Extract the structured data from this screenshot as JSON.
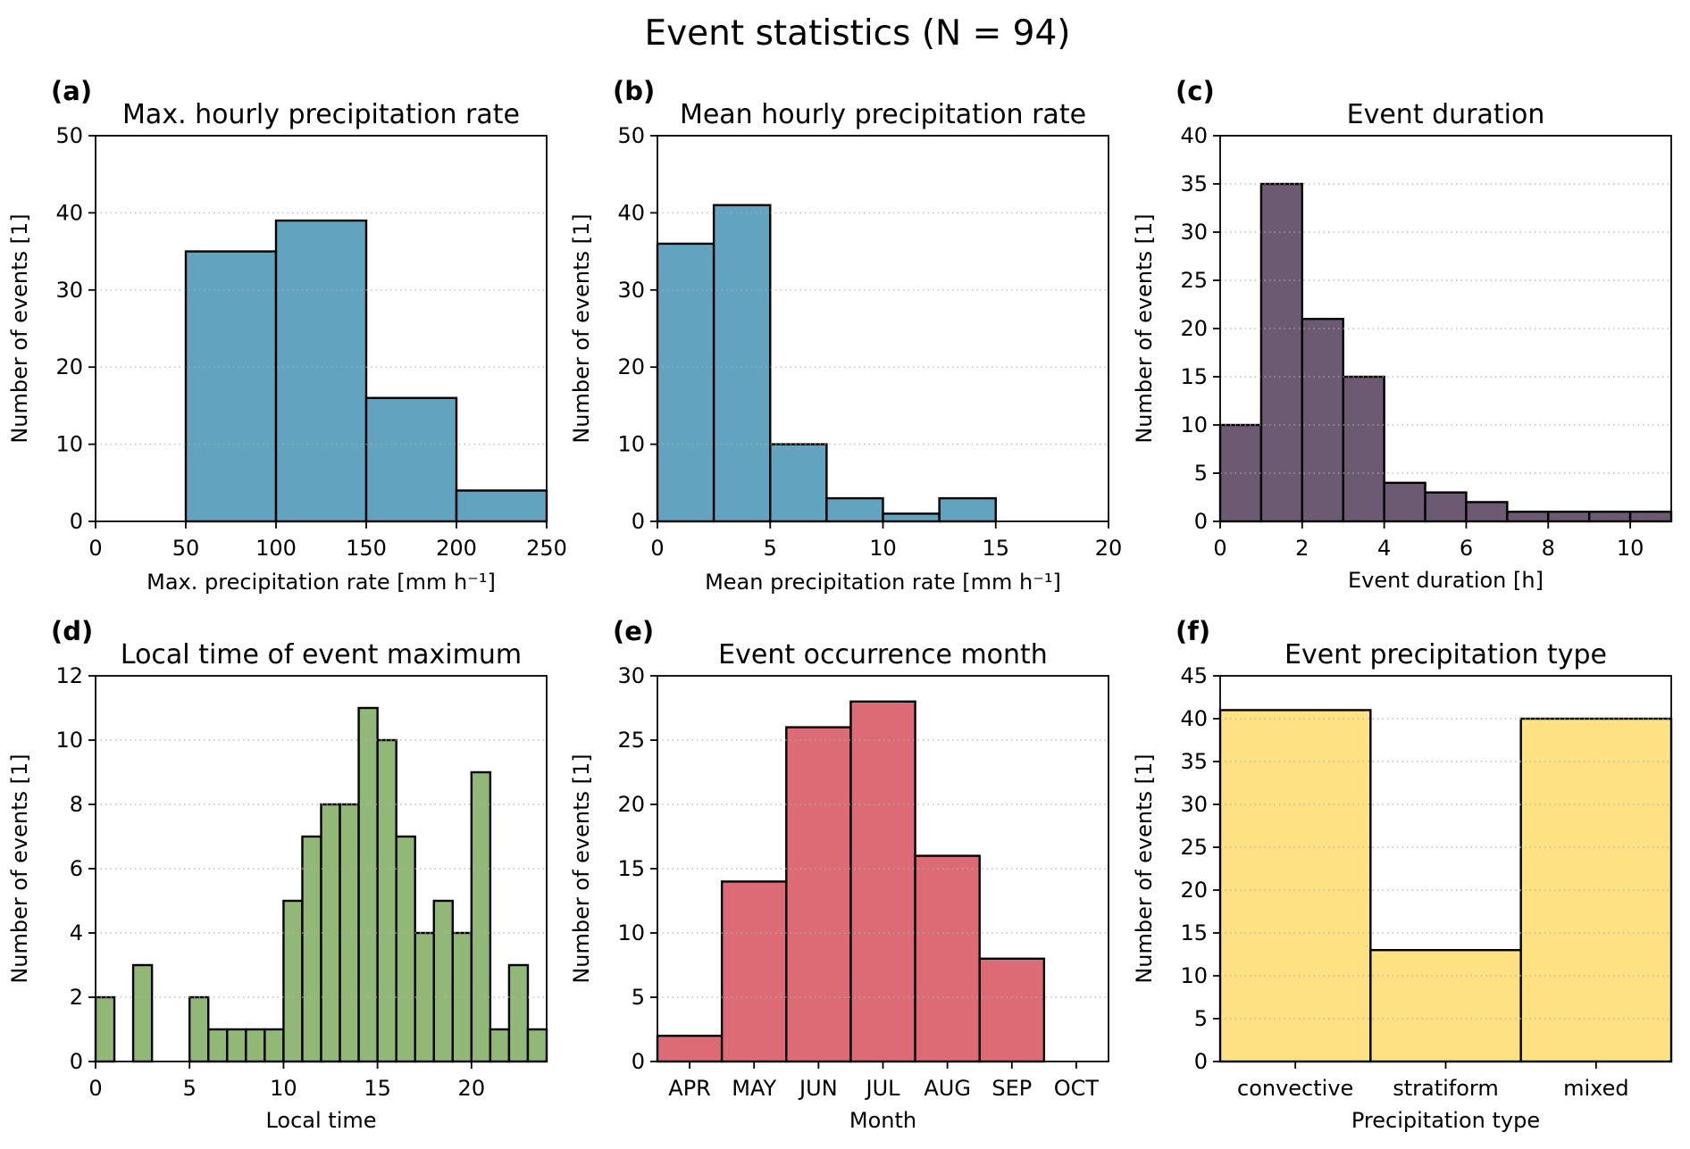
{
  "figure": {
    "suptitle": "Event statistics (N = 94)"
  },
  "chart_data": [
    {
      "id": "a",
      "panel_label": "(a)",
      "type": "bar",
      "title": "Max. hourly precipitation rate",
      "xlabel": "Max. precipitation rate [mm h⁻¹]",
      "ylabel": "Number of events [1]",
      "bin_edges": [
        0,
        50,
        100,
        150,
        200,
        250
      ],
      "values": [
        0,
        35,
        39,
        16,
        4
      ],
      "xlim": [
        0,
        250
      ],
      "ylim": [
        0,
        50
      ],
      "xticks": [
        0,
        50,
        100,
        150,
        200,
        250
      ],
      "yticks": [
        0,
        10,
        20,
        30,
        40,
        50
      ],
      "color": "#62a3c0",
      "grid": "y-dotted"
    },
    {
      "id": "b",
      "panel_label": "(b)",
      "type": "bar",
      "title": "Mean hourly precipitation rate",
      "xlabel": "Mean precipitation rate [mm h⁻¹]",
      "ylabel": "Number of events [1]",
      "bin_edges": [
        0,
        2.5,
        5,
        7.5,
        10,
        12.5,
        15,
        17.5,
        20
      ],
      "values": [
        36,
        41,
        10,
        3,
        1,
        3,
        0,
        0
      ],
      "xlim": [
        0,
        20
      ],
      "ylim": [
        0,
        50
      ],
      "xticks": [
        0,
        5,
        10,
        15,
        20
      ],
      "yticks": [
        0,
        10,
        20,
        30,
        40,
        50
      ],
      "color": "#62a3c0",
      "grid": "y-dotted"
    },
    {
      "id": "c",
      "panel_label": "(c)",
      "type": "bar",
      "title": "Event duration",
      "xlabel": "Event duration [h]",
      "ylabel": "Number of events [1]",
      "bin_edges": [
        0,
        1,
        2,
        3,
        4,
        5,
        6,
        7,
        8,
        9,
        10,
        11
      ],
      "values": [
        10,
        35,
        21,
        15,
        4,
        3,
        2,
        1,
        1,
        1,
        1
      ],
      "xlim": [
        0,
        11
      ],
      "ylim": [
        0,
        40
      ],
      "xticks": [
        0,
        2,
        4,
        6,
        8,
        10
      ],
      "yticks": [
        0,
        5,
        10,
        15,
        20,
        25,
        30,
        35,
        40
      ],
      "color": "#6b5a71",
      "grid": "y-dotted"
    },
    {
      "id": "d",
      "panel_label": "(d)",
      "type": "bar",
      "title": "Local time of event maximum",
      "xlabel": "Local time",
      "ylabel": "Number of events [1]",
      "bin_edges": [
        0,
        1,
        2,
        3,
        4,
        5,
        6,
        7,
        8,
        9,
        10,
        11,
        12,
        13,
        14,
        15,
        16,
        17,
        18,
        19,
        20,
        21,
        22,
        23,
        24
      ],
      "values": [
        2,
        0,
        3,
        0,
        0,
        2,
        1,
        1,
        1,
        1,
        5,
        7,
        8,
        8,
        11,
        10,
        7,
        4,
        5,
        4,
        9,
        1,
        3,
        1
      ],
      "xlim": [
        0,
        24
      ],
      "ylim": [
        0,
        12
      ],
      "xticks": [
        0,
        5,
        10,
        15,
        20
      ],
      "yticks": [
        0,
        2,
        4,
        6,
        8,
        10,
        12
      ],
      "color": "#92b878",
      "grid": "y-dotted"
    },
    {
      "id": "e",
      "panel_label": "(e)",
      "type": "bar",
      "title": "Event occurrence month",
      "xlabel": "Month",
      "ylabel": "Number of events [1]",
      "categories": [
        "APR",
        "MAY",
        "JUN",
        "JUL",
        "AUG",
        "SEP",
        "OCT"
      ],
      "values": [
        2,
        14,
        26,
        28,
        16,
        8,
        0
      ],
      "ylim": [
        0,
        30
      ],
      "yticks": [
        0,
        5,
        10,
        15,
        20,
        25,
        30
      ],
      "color": "#dd6b75",
      "grid": "y-dotted"
    },
    {
      "id": "f",
      "panel_label": "(f)",
      "type": "bar",
      "title": "Event precipitation type",
      "xlabel": "Precipitation type",
      "ylabel": "Number of events [1]",
      "categories": [
        "convective",
        "stratiform",
        "mixed"
      ],
      "values": [
        41,
        13,
        40
      ],
      "ylim": [
        0,
        45
      ],
      "yticks": [
        0,
        5,
        10,
        15,
        20,
        25,
        30,
        35,
        40,
        45
      ],
      "color": "#fde183",
      "grid": "y-dotted"
    }
  ]
}
